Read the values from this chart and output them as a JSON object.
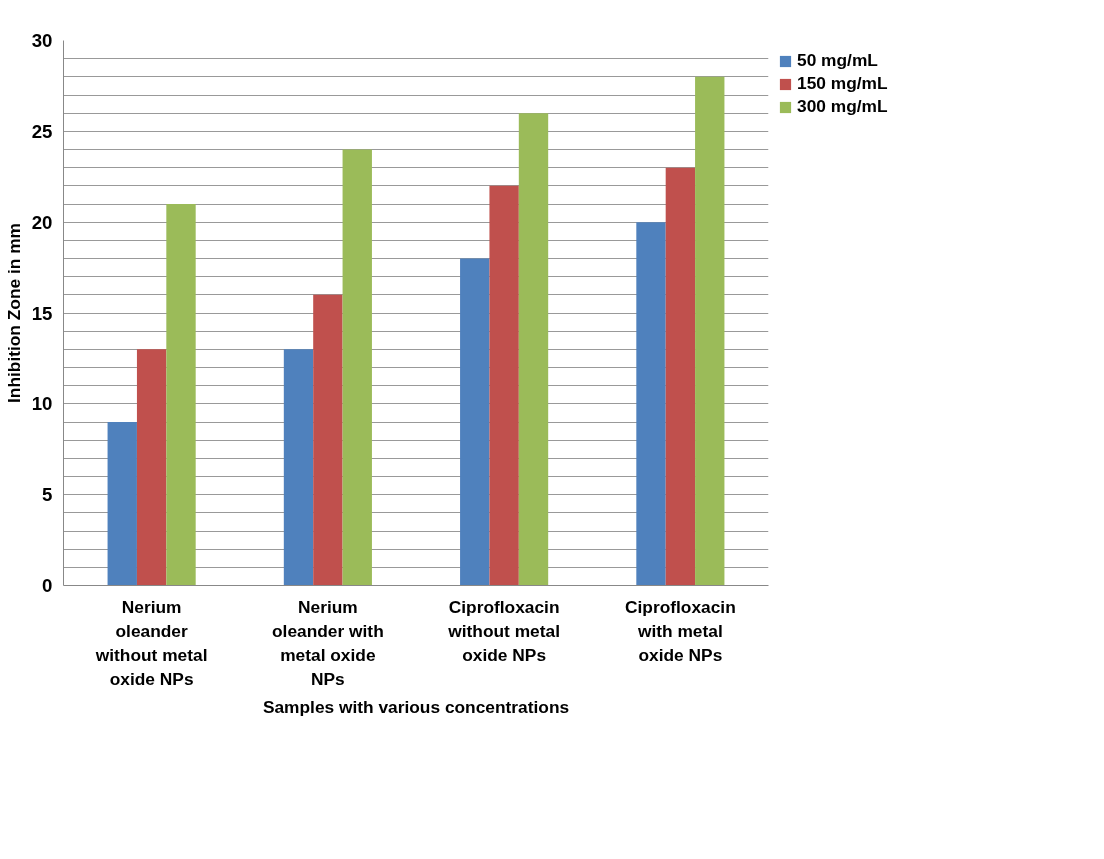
{
  "chart_data": {
    "type": "bar",
    "xlabel": "Samples with various concentrations",
    "ylabel": "Inhibition Zone in mm",
    "categories": [
      "Nerium oleander without metal oxide NPs",
      "Nerium oleander with metal oxide NPs",
      "Ciprofloxacin without metal oxide NPs",
      "Ciprofloxacin with metal oxide NPs"
    ],
    "series": [
      {
        "name": "50 mg/mL",
        "color": "#4f81bd",
        "values": [
          9,
          13,
          18,
          20
        ]
      },
      {
        "name": "150 mg/mL",
        "color": "#c0504d",
        "values": [
          13,
          16,
          22,
          23
        ]
      },
      {
        "name": "300 mg/mL",
        "color": "#9bbb59",
        "values": [
          21,
          24,
          26,
          28
        ]
      }
    ],
    "ylim": [
      0,
      30
    ],
    "yticks": [
      0,
      {
        "value": 1,
        "label": null
      },
      {
        "value": 2,
        "label": null
      },
      {
        "value": 3,
        "label": null
      },
      {
        "value": 4,
        "label": null
      },
      5,
      {
        "value": 6,
        "label": null
      },
      {
        "value": 7,
        "label": null
      },
      {
        "value": 8,
        "label": null
      },
      {
        "value": 9,
        "label": null
      },
      10,
      {
        "value": 11,
        "label": null
      },
      {
        "value": 12,
        "label": null
      },
      {
        "value": 13,
        "label": null
      },
      {
        "value": 14,
        "label": null
      },
      15,
      {
        "value": 16,
        "label": null
      },
      {
        "value": 17,
        "label": null
      },
      {
        "value": 18,
        "label": null
      },
      {
        "value": 19,
        "label": null
      },
      20,
      {
        "value": 21,
        "label": null
      },
      {
        "value": 22,
        "label": null
      },
      {
        "value": 23,
        "label": null
      },
      {
        "value": 24,
        "label": null
      },
      25,
      {
        "value": 26,
        "label": null
      },
      {
        "value": 27,
        "label": null
      },
      {
        "value": 28,
        "label": null
      },
      {
        "value": 29,
        "label": null
      },
      30
    ],
    "grid": "y",
    "legend": "top right"
  }
}
